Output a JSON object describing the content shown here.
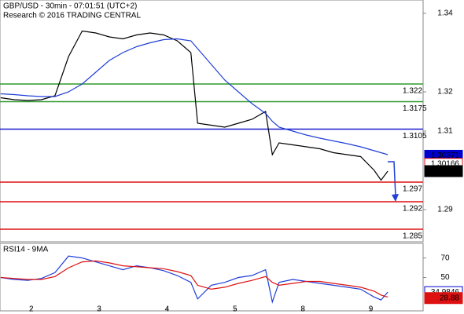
{
  "chart_data": [
    {
      "type": "line",
      "title": "GBP/USD - 30min - 07:01:51 (UTC+2)",
      "subtitle": "Research © 2016 TRADING CENTRAL",
      "x": [
        -0.45,
        -0.25,
        -0.05,
        0.15,
        0.35,
        0.55,
        0.75,
        0.95,
        1.15,
        1.35,
        1.55,
        1.75,
        1.95,
        2.15,
        2.35,
        2.45,
        2.65,
        2.85,
        3.05,
        3.25,
        3.45,
        3.55,
        3.65,
        3.85,
        4.05,
        4.25,
        4.45,
        4.65,
        4.85,
        5.05,
        5.15,
        5.25
      ],
      "series": [
        {
          "color": "#000000",
          "values": [
            1.3185,
            1.318,
            1.3178,
            1.318,
            1.319,
            1.329,
            1.3355,
            1.335,
            1.334,
            1.3335,
            1.3345,
            1.335,
            1.3345,
            1.333,
            1.33,
            1.312,
            1.3115,
            1.311,
            1.312,
            1.313,
            1.315,
            1.304,
            1.307,
            1.3065,
            1.306,
            1.3055,
            1.3045,
            1.304,
            1.3035,
            1.3,
            1.2975,
            1.2998
          ]
        },
        {
          "color": "#1f3fd8",
          "values": [
            1.3195,
            1.3193,
            1.319,
            1.3188,
            1.3188,
            1.32,
            1.322,
            1.325,
            1.328,
            1.33,
            1.3315,
            1.3325,
            1.3333,
            1.3335,
            1.333,
            1.331,
            1.327,
            1.323,
            1.32,
            1.317,
            1.3145,
            1.3125,
            1.311,
            1.31,
            1.309,
            1.3082,
            1.3075,
            1.3068,
            1.306,
            1.305,
            1.3045,
            1.304
          ]
        }
      ],
      "levels": [
        {
          "value": 1.322,
          "color": "#2e9a2e"
        },
        {
          "value": 1.3175,
          "color": "#2e9a2e"
        },
        {
          "value": 1.3105,
          "color": "#1a1acc"
        },
        {
          "value": 1.297,
          "color": "#dd1111"
        },
        {
          "value": 1.292,
          "color": "#dd1111"
        },
        {
          "value": 1.285,
          "color": "#dd1111"
        }
      ],
      "price_labels": [
        {
          "value": 1.30371,
          "color": "#0000cc",
          "boxed": true
        },
        {
          "value": 1.30166,
          "color": "#dd1111",
          "boxed": false
        },
        {
          "value": 1.2998,
          "color": "#000000",
          "boxed": true
        }
      ],
      "xlim": [
        -0.46,
        5.77
      ],
      "ylim": [
        1.2818,
        1.3434
      ],
      "yticks": [
        1.34,
        1.32,
        1.31,
        1.29
      ]
    },
    {
      "type": "line",
      "title": "RSI14 - 9MA",
      "x": [
        -0.45,
        -0.25,
        -0.05,
        0.15,
        0.35,
        0.55,
        0.75,
        0.95,
        1.15,
        1.35,
        1.55,
        1.75,
        1.95,
        2.15,
        2.35,
        2.45,
        2.65,
        2.85,
        3.05,
        3.25,
        3.45,
        3.55,
        3.65,
        3.85,
        4.05,
        4.25,
        4.45,
        4.65,
        4.85,
        5.05,
        5.15,
        5.25
      ],
      "series": [
        {
          "color": "#1f3fd8",
          "values": [
            50,
            48,
            47,
            49,
            55,
            72,
            70,
            66,
            62,
            58,
            62,
            60,
            57,
            52,
            45,
            28,
            42,
            45,
            50,
            52,
            58,
            25,
            45,
            48,
            46,
            44,
            42,
            40,
            38,
            30,
            27,
            35
          ]
        },
        {
          "color": "#dd1111",
          "values": [
            50,
            49,
            48,
            48,
            51,
            60,
            66,
            67,
            65,
            62,
            61,
            60,
            59,
            56,
            52,
            42,
            38,
            40,
            44,
            47,
            51,
            45,
            42,
            44,
            46,
            46,
            44,
            42,
            40,
            36,
            32,
            30
          ]
        }
      ],
      "price_labels": [
        {
          "value": 34.9846,
          "color": "#0000cc",
          "boxed": false
        },
        {
          "value": 28.88,
          "color": "#dd1111",
          "boxed": true
        }
      ],
      "xlim": [
        -0.46,
        5.77
      ],
      "ylim": [
        15.8,
        85
      ],
      "yticks": [
        70,
        50
      ],
      "xticks": [
        {
          "value": 0,
          "label": "2"
        },
        {
          "value": 1,
          "label": "3"
        },
        {
          "value": 2,
          "label": "4"
        },
        {
          "value": 3,
          "label": "5"
        },
        {
          "value": 4,
          "label": "8"
        },
        {
          "value": 5,
          "label": "9"
        }
      ]
    }
  ]
}
